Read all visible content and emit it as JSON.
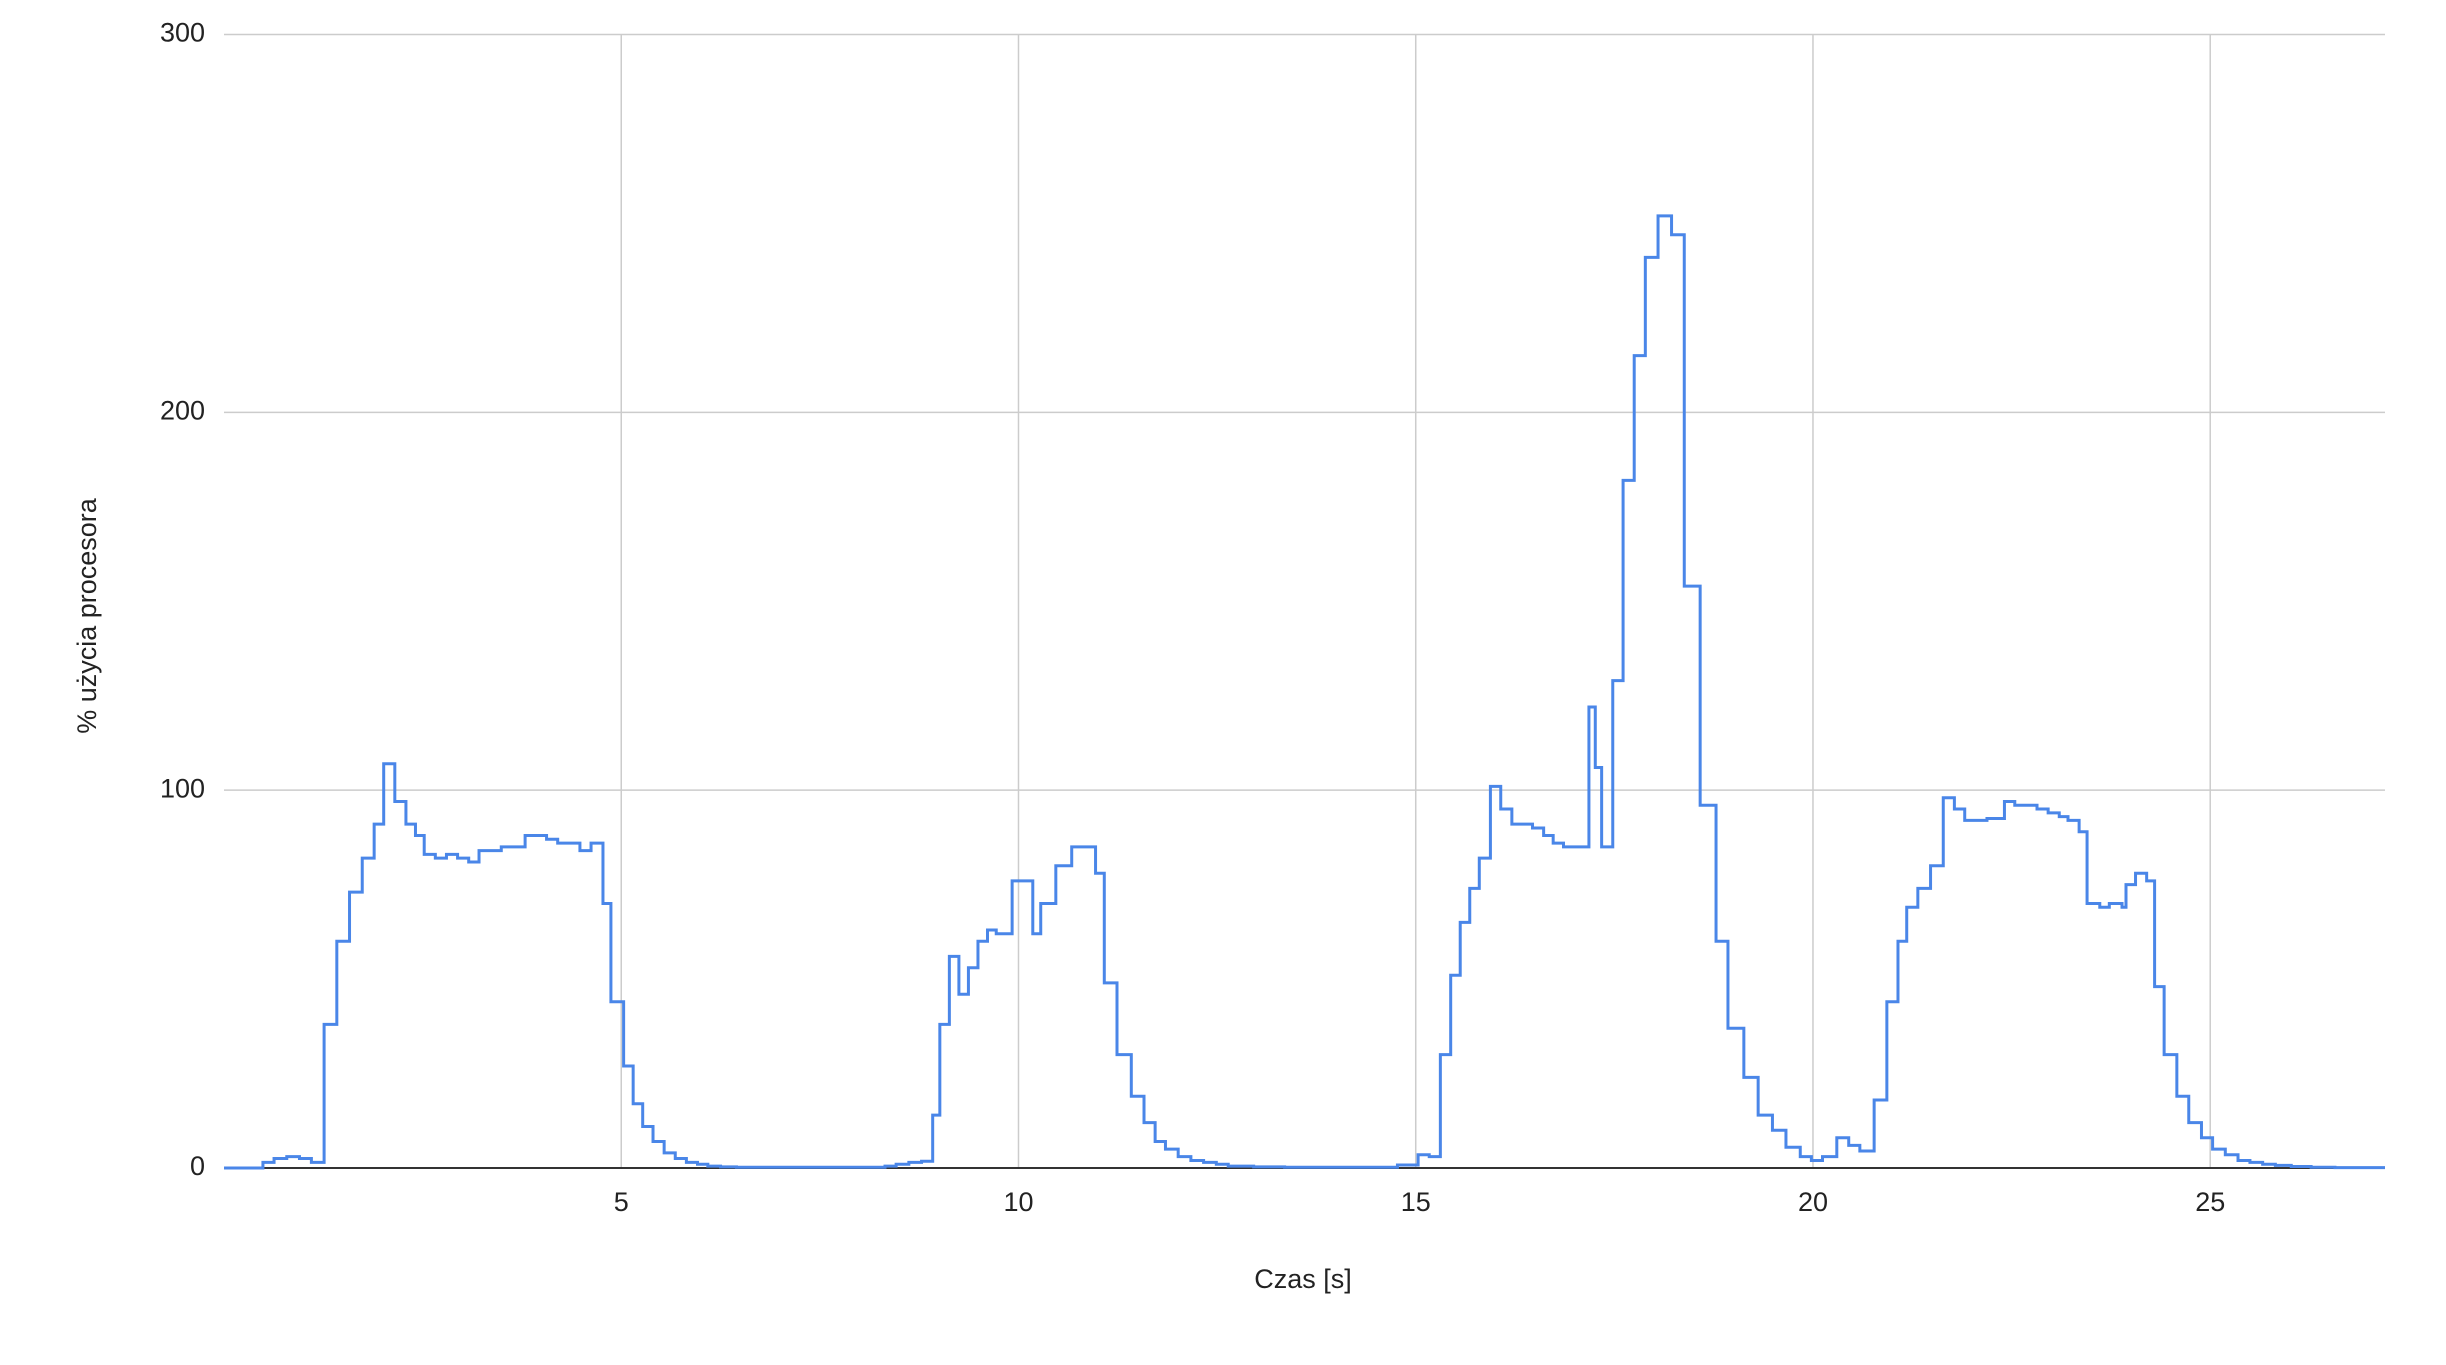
{
  "chart_data": {
    "type": "line",
    "step": true,
    "xlabel": "Czas [s]",
    "ylabel": "% użycia procesora",
    "color": "#4a86e8",
    "grid": true,
    "xlim": [
      0,
      27.2
    ],
    "ylim": [
      0,
      300
    ],
    "xticks": [
      5,
      10,
      15,
      20,
      25
    ],
    "yticks": [
      0,
      100,
      200,
      300
    ],
    "x": [
      0,
      0.49,
      0.63,
      0.79,
      0.95,
      1.1,
      1.26,
      1.42,
      1.58,
      1.74,
      1.89,
      2.01,
      2.15,
      2.29,
      2.41,
      2.52,
      2.66,
      2.8,
      2.94,
      3.08,
      3.21,
      3.35,
      3.49,
      3.65,
      3.79,
      3.93,
      4.06,
      4.2,
      4.36,
      4.48,
      4.62,
      4.77,
      4.87,
      5.03,
      5.15,
      5.27,
      5.4,
      5.54,
      5.68,
      5.82,
      5.96,
      6.09,
      6.25,
      6.45,
      8.32,
      8.46,
      8.62,
      8.78,
      8.92,
      9.01,
      9.13,
      9.25,
      9.37,
      9.49,
      9.61,
      9.72,
      9.92,
      10.18,
      10.28,
      10.47,
      10.67,
      10.97,
      11.08,
      11.24,
      11.42,
      11.58,
      11.72,
      11.85,
      12.01,
      12.17,
      12.33,
      12.49,
      12.64,
      12.96,
      13.35,
      14.77,
      15.03,
      15.17,
      15.31,
      15.44,
      15.56,
      15.68,
      15.8,
      15.94,
      16.07,
      16.21,
      16.35,
      16.47,
      16.61,
      16.73,
      16.86,
      17.02,
      17.18,
      17.26,
      17.34,
      17.48,
      17.61,
      17.75,
      17.89,
      18.05,
      18.22,
      18.38,
      18.58,
      18.78,
      18.93,
      19.13,
      19.31,
      19.49,
      19.66,
      19.84,
      19.98,
      20.12,
      20.3,
      20.45,
      20.59,
      20.77,
      20.93,
      21.07,
      21.18,
      21.32,
      21.48,
      21.64,
      21.78,
      21.91,
      22.03,
      22.19,
      22.41,
      22.54,
      22.82,
      22.96,
      23.1,
      23.21,
      23.35,
      23.45,
      23.61,
      23.73,
      23.89,
      23.94,
      24.06,
      24.2,
      24.3,
      24.42,
      24.58,
      24.73,
      24.89,
      25.03,
      25.19,
      25.35,
      25.5,
      25.66,
      25.82,
      26.02,
      26.27,
      26.57
    ],
    "values": [
      0,
      1.5,
      2.5,
      3,
      2.5,
      1.5,
      38,
      60,
      73,
      82,
      91,
      107,
      97,
      91,
      88,
      83,
      82,
      83,
      82,
      81,
      84,
      84,
      85,
      85,
      88,
      88,
      87,
      86,
      86,
      84,
      86,
      70,
      44,
      27,
      17,
      11,
      7,
      4,
      2.5,
      1.5,
      1,
      0.5,
      0.3,
      0.2,
      0.5,
      1,
      1.5,
      1.8,
      14,
      38,
      56,
      46,
      53,
      60,
      63,
      62,
      76,
      62,
      70,
      80,
      85,
      78,
      49,
      30,
      19,
      12,
      7,
      5,
      3,
      2,
      1.5,
      1,
      0.5,
      0.3,
      0.2,
      0.8,
      3.5,
      3,
      30,
      51,
      65,
      74,
      82,
      101,
      95,
      91,
      91,
      90,
      88,
      86,
      85,
      85,
      122,
      106,
      85,
      129,
      182,
      215,
      241,
      252,
      247,
      154,
      96,
      60,
      37,
      24,
      14,
      10,
      5.5,
      3,
      2,
      3,
      8,
      6,
      4.5,
      18,
      44,
      60,
      69,
      74,
      80,
      98,
      95,
      92,
      92,
      92.5,
      97,
      96,
      95,
      94,
      93,
      92,
      89,
      70,
      69,
      70,
      69,
      75,
      78,
      76,
      48,
      30,
      19,
      12,
      8,
      5,
      3.5,
      2,
      1.5,
      1,
      0.7,
      0.4,
      0.2,
      0.1
    ]
  }
}
